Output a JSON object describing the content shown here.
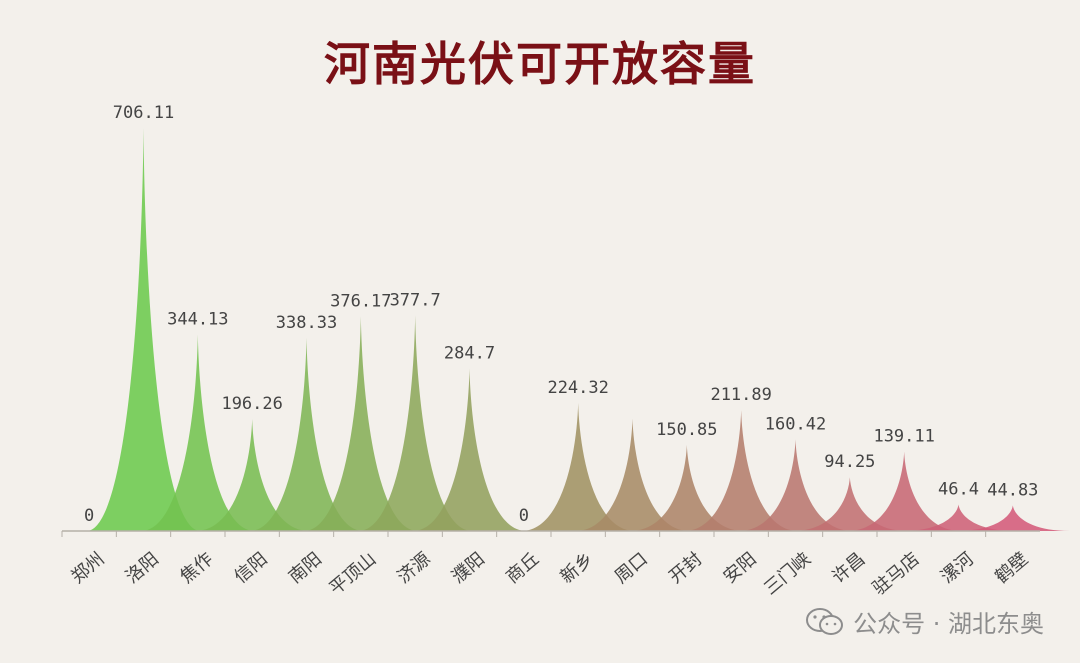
{
  "chart_data": {
    "type": "area",
    "title": "河南光伏可开放容量",
    "categories": [
      "郑州",
      "洛阳",
      "焦作",
      "信阳",
      "南阳",
      "平顶山",
      "济源",
      "濮阳",
      "商丘",
      "新乡",
      "周口",
      "开封",
      "安阳",
      "三门峡",
      "许昌",
      "驻马店",
      "漯河",
      "鹤壁"
    ],
    "values": [
      0,
      706.11,
      344.13,
      196.26,
      338.33,
      376.17,
      377.7,
      284.7,
      0,
      224.32,
      197,
      150.85,
      211.89,
      160.42,
      94.25,
      139.11,
      46.4,
      44.83
    ],
    "data_labels": [
      "0",
      "706.11",
      "344.13",
      "196.26",
      "338.33",
      "376.17",
      "377.7",
      "284.7",
      "0",
      "224.32",
      "",
      "150.85",
      "211.89",
      "160.42",
      "94.25",
      "139.11",
      "46.4",
      "44.83"
    ],
    "ylim": [
      0,
      720
    ],
    "grid": false,
    "colors": {
      "start": "#66d14a",
      "end": "#d45a7a",
      "title": "#7a1016"
    }
  },
  "watermark": {
    "text": "公众号 · 湖北东奥",
    "icon": "wechat-icon"
  }
}
